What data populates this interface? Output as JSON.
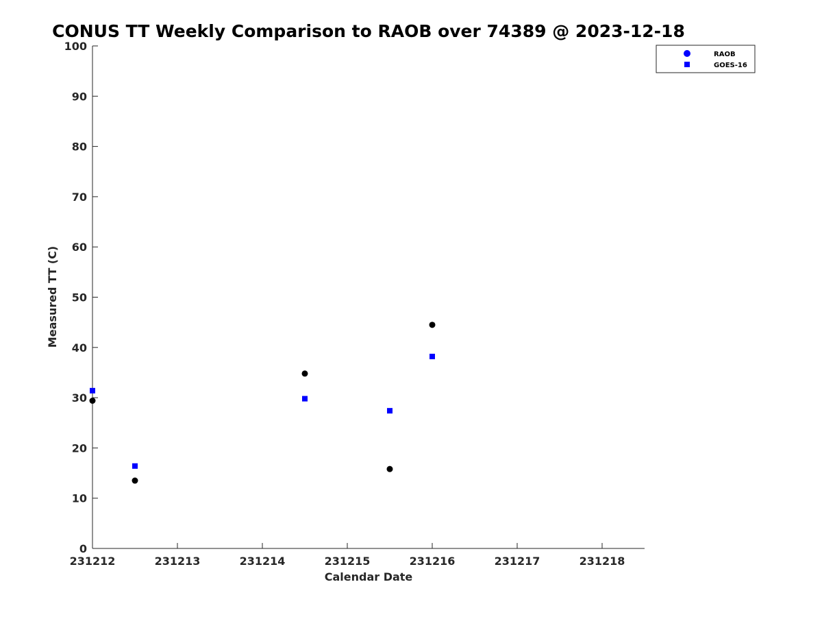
{
  "chart_data": {
    "type": "scatter",
    "title": "CONUS TT Weekly Comparison to RAOB over 74389 @ 2023-12-18",
    "xlabel": "Calendar Date",
    "ylabel": "Measured TT (C)",
    "xlim": [
      "2023-12-12",
      "2023-12-18 12:00"
    ],
    "ylim": [
      0,
      100
    ],
    "x_ticks": [
      "231212",
      "231213",
      "231214",
      "231215",
      "231216",
      "231217",
      "231218"
    ],
    "y_ticks": [
      "0",
      "10",
      "20",
      "30",
      "40",
      "50",
      "60",
      "70",
      "80",
      "90",
      "100"
    ],
    "grid": false,
    "legend_position": "top-right, outside plot",
    "series": [
      {
        "name": "RAOB",
        "marker": "circle",
        "color": "#000000",
        "legend_color": "#0000ff",
        "points": [
          {
            "x": "2023-12-12 00:00",
            "y": 29.4
          },
          {
            "x": "2023-12-12 12:00",
            "y": 13.5
          },
          {
            "x": "2023-12-14 12:00",
            "y": 34.8
          },
          {
            "x": "2023-12-15 12:00",
            "y": 15.8
          },
          {
            "x": "2023-12-16 00:00",
            "y": 44.5
          }
        ]
      },
      {
        "name": "GOES-16",
        "marker": "square",
        "color": "#0000ff",
        "legend_color": "#0000ff",
        "points": [
          {
            "x": "2023-12-12 00:00",
            "y": 31.4
          },
          {
            "x": "2023-12-12 12:00",
            "y": 16.4
          },
          {
            "x": "2023-12-14 12:00",
            "y": 29.8
          },
          {
            "x": "2023-12-15 12:00",
            "y": 27.4
          },
          {
            "x": "2023-12-16 00:00",
            "y": 38.2
          }
        ]
      }
    ]
  }
}
